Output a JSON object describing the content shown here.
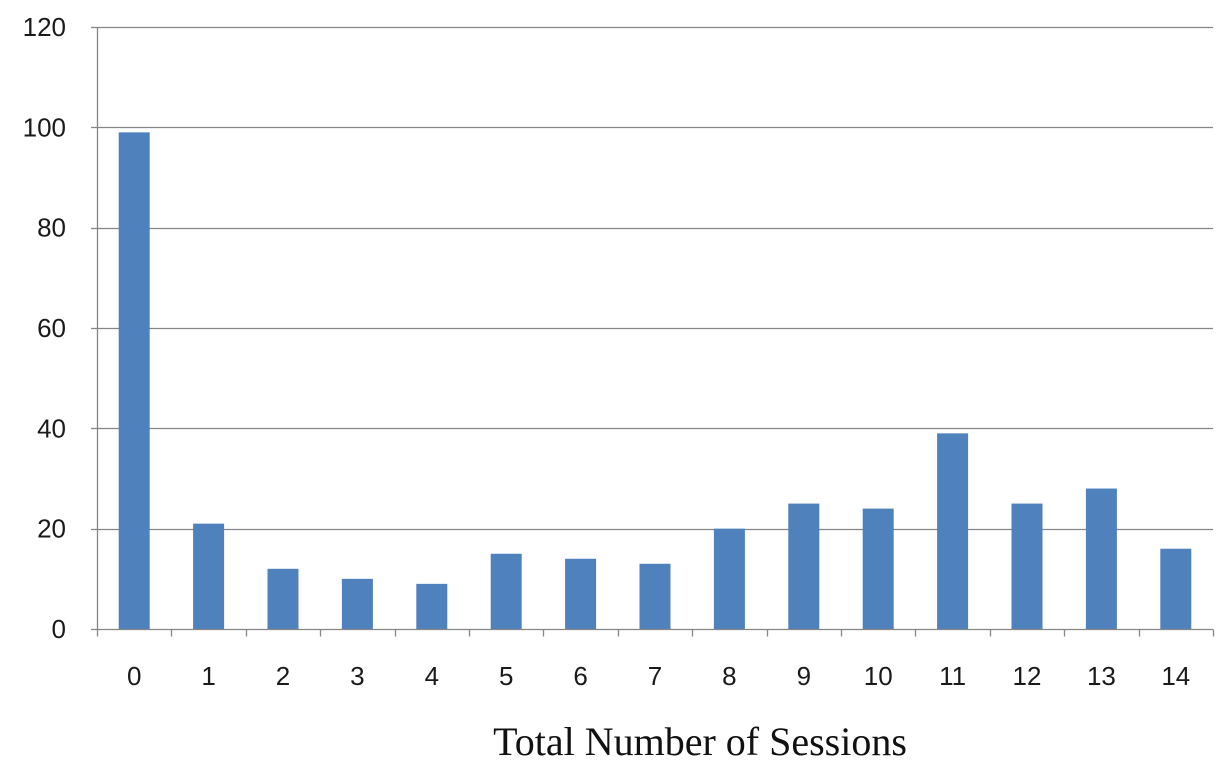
{
  "chart_data": {
    "type": "bar",
    "title": "",
    "xlabel": "Total Number of Sessions",
    "ylabel": "",
    "categories": [
      "0",
      "1",
      "2",
      "3",
      "4",
      "5",
      "6",
      "7",
      "8",
      "9",
      "10",
      "11",
      "12",
      "13",
      "14"
    ],
    "values": [
      99,
      21,
      12,
      10,
      9,
      15,
      14,
      13,
      20,
      25,
      24,
      39,
      25,
      28,
      16
    ],
    "ylim": [
      0,
      120
    ],
    "yticks": [
      "0",
      "20",
      "40",
      "60",
      "80",
      "100",
      "120"
    ],
    "grid": true,
    "legend": "none",
    "bar_color": "#4f81bd",
    "gridline_color": "#868686"
  }
}
